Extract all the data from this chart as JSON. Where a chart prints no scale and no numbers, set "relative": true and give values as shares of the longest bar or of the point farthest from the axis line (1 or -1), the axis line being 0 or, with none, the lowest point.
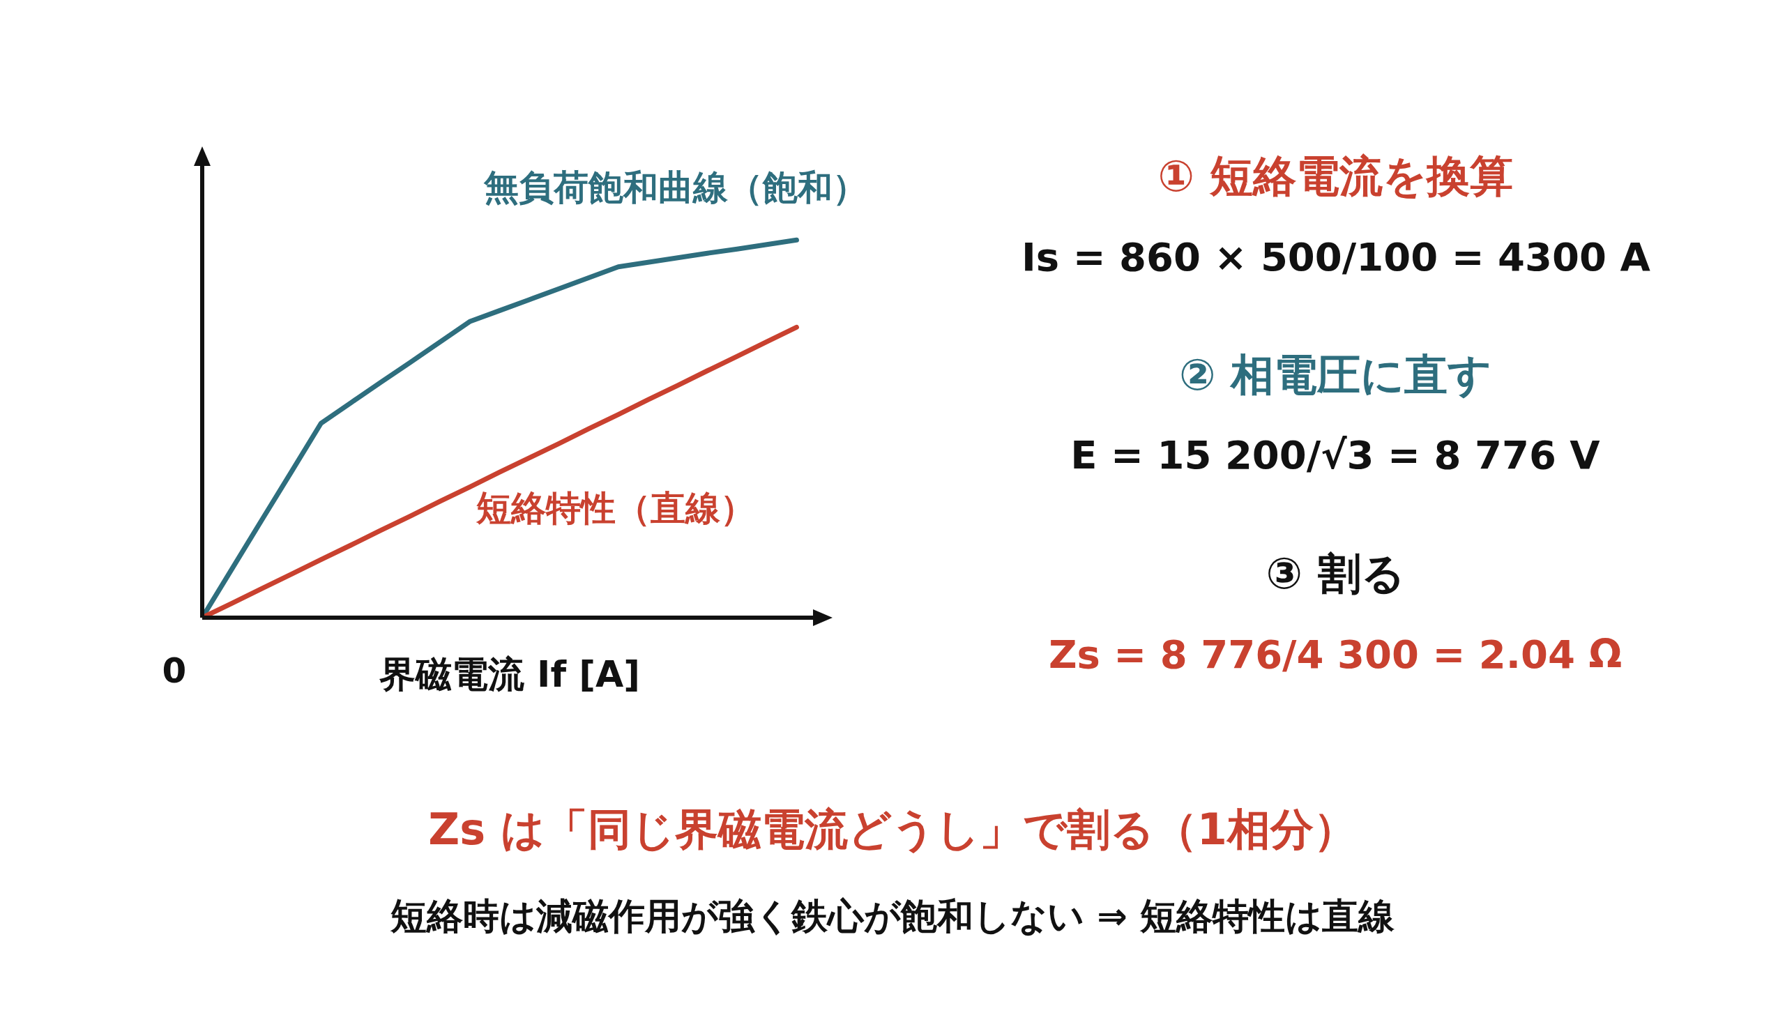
{
  "chart_data": [
    {
      "type": "line",
      "relative": true,
      "xlabel": "界磁電流 If [A]",
      "categories": [
        null,
        null,
        null,
        null,
        null,
        null,
        null,
        null,
        null,
        null,
        null,
        null,
        null,
        null,
        null,
        null,
        null,
        null,
        null,
        null,
        null
      ],
      "series": [
        {
          "name": "無負荷飽和曲線（飽和）",
          "color": "#2e6e7e",
          "values": [
            0,
            0.129,
            0.258,
            0.386,
            0.515,
            0.569,
            0.623,
            0.676,
            0.73,
            0.784,
            0.813,
            0.842,
            0.871,
            0.9,
            0.929,
            0.941,
            0.953,
            0.965,
            0.976,
            0.988,
            1
          ]
        },
        {
          "name": "短絡特性（直線）",
          "color": "#c9412f",
          "values": [
            0,
            0.038,
            0.077,
            0.115,
            0.154,
            0.192,
            0.231,
            0.269,
            0.308,
            0.346,
            0.385,
            0.423,
            0.461,
            0.5,
            0.538,
            0.577,
            0.615,
            0.654,
            0.692,
            0.731,
            0.769
          ]
        }
      ],
      "annotations": [
        "0",
        "Zs は「同じ界磁電流どうし」で割る（1相分）",
        "短絡時は減磁作用が強く鉄心が飽和しない ⇒ 短絡特性は直線"
      ]
    },
    {
      "type": "other",
      "annotations": [
        "① 短絡電流を換算",
        "Is = 860 × 500/100 = 4300 A",
        "② 相電圧に直す",
        "E = 15 200/√3 = 8 776 V",
        "③ 割る",
        "Zs = 8 776/4 300 = 2.04 Ω"
      ]
    }
  ]
}
